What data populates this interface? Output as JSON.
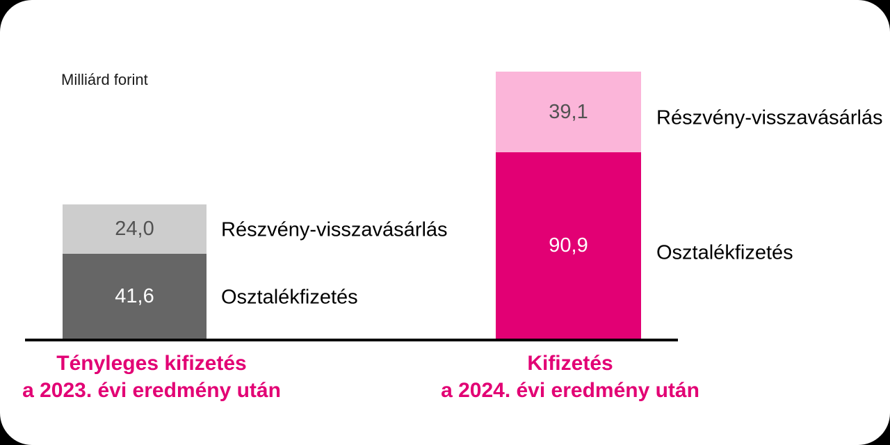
{
  "unit_label": "Milliárd forint",
  "bars": {
    "b2023": {
      "buyback_value": "24,0",
      "dividend_value": "41,6",
      "buyback_label": "Részvény-visszavásárlás",
      "dividend_label": "Osztalékfizetés",
      "axis_label_line1": "Tényleges kifizetés",
      "axis_label_line2": "a 2023. évi eredmény után"
    },
    "b2024": {
      "buyback_value": "39,1",
      "dividend_value": "90,9",
      "buyback_label": "Részvény-visszavásárlás",
      "dividend_label": "Osztalékfizetés",
      "axis_label_line1": "Kifizetés",
      "axis_label_line2": "a 2024. évi eredmény után"
    }
  },
  "colors": {
    "magenta": "#e20074",
    "light_pink": "#fbb5d9",
    "dark_gray": "#666666",
    "light_gray": "#cdcdcd",
    "axis_black": "#000000",
    "value_text_dark": "#525252",
    "value_text_light": "#ffffff"
  },
  "chart_data": {
    "type": "bar",
    "stacked": true,
    "title": "",
    "ylabel": "Milliárd forint",
    "categories": [
      "Tényleges kifizetés a 2023. évi eredmény után",
      "Kifizetés a 2024. évi eredmény után"
    ],
    "series": [
      {
        "name": "Osztalékfizetés",
        "values": [
          41.6,
          90.9
        ],
        "colors": [
          "#666666",
          "#e20074"
        ]
      },
      {
        "name": "Részvény-visszavásárlás",
        "values": [
          24.0,
          39.1
        ],
        "colors": [
          "#cdcdcd",
          "#fbb5d9"
        ]
      }
    ],
    "totals": [
      65.6,
      130.0
    ],
    "value_labels": [
      [
        "41,6",
        "90,9"
      ],
      [
        "24,0",
        "39,1"
      ]
    ],
    "decimal_separator": ",",
    "grid": false,
    "legend_position": "labels-beside-bars",
    "ylim": [
      0,
      130
    ]
  }
}
